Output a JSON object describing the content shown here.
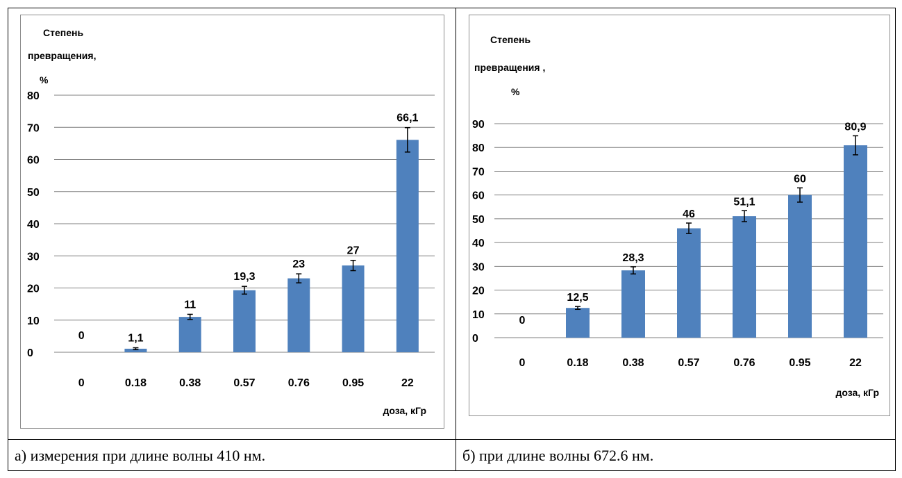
{
  "colors": {
    "bar": "#4f81bd",
    "grid": "#7f7f7f",
    "axis": "#7f7f7f",
    "error": "#000000",
    "text": "#000000"
  },
  "panels": [
    {
      "caption": "а) измерения при длине волны 410 нм.",
      "chart_data": {
        "type": "bar",
        "categories": [
          "0",
          "0.18",
          "0.38",
          "0.57",
          "0.76",
          "0.95",
          "22"
        ],
        "values": [
          0,
          1.1,
          11,
          19.3,
          23,
          27,
          66.1
        ],
        "value_labels": [
          "0",
          "1,1",
          "11",
          "19,3",
          "23",
          "27",
          "66,1"
        ],
        "errors": [
          0,
          0.3,
          0.8,
          1.2,
          1.4,
          1.6,
          3.8
        ],
        "ylabel": [
          "Степень",
          "превращения,",
          "%"
        ],
        "xlabel": "доза, кГр",
        "ylim": [
          0,
          80
        ],
        "yticks": [
          0,
          10,
          20,
          30,
          40,
          50,
          60,
          70,
          80
        ],
        "grid": true
      }
    },
    {
      "caption": "б) при длине волны 672.6 нм.",
      "chart_data": {
        "type": "bar",
        "categories": [
          "0",
          "0.18",
          "0.38",
          "0.57",
          "0.76",
          "0.95",
          "22"
        ],
        "values": [
          0,
          12.5,
          28.3,
          46,
          51.1,
          60,
          80.9
        ],
        "value_labels": [
          "0",
          "12,5",
          "28,3",
          "46",
          "51,1",
          "60",
          "80,9"
        ],
        "errors": [
          0,
          0.6,
          1.5,
          2.2,
          2.3,
          3.0,
          4.0
        ],
        "ylabel": [
          "Степень",
          "превращения ,",
          "%"
        ],
        "xlabel": "доза, кГр",
        "ylim": [
          0,
          90
        ],
        "yticks": [
          0,
          10,
          20,
          30,
          40,
          50,
          60,
          70,
          80,
          90
        ],
        "grid": true
      }
    }
  ]
}
